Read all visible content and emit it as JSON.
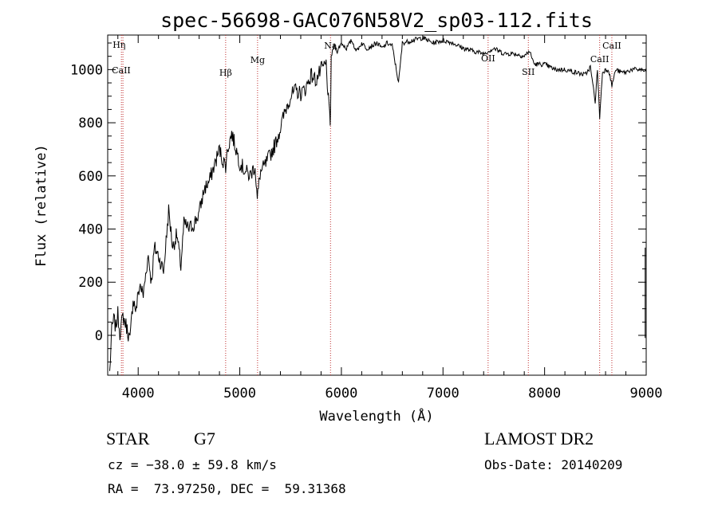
{
  "chart_data": {
    "type": "line",
    "title": "spec-56698-GAC076N58V2_sp03-112.fits",
    "xlabel": "Wavelength (Å)",
    "ylabel": "Flux (relative)",
    "xlim": [
      3700,
      9000
    ],
    "ylim": [
      -150,
      1130
    ],
    "xticks": [
      4000,
      5000,
      6000,
      7000,
      8000,
      9000
    ],
    "yticks": [
      0,
      200,
      400,
      600,
      800,
      1000
    ],
    "grid": false,
    "series": [
      {
        "x": [
          3720,
          3740,
          3760,
          3780,
          3800,
          3820,
          3850,
          3880,
          3920,
          3950,
          3980,
          4000,
          4020,
          4050,
          4080,
          4100,
          4130,
          4160,
          4200,
          4250,
          4300,
          4340,
          4380,
          4420,
          4450,
          4500,
          4550,
          4600,
          4650,
          4700,
          4750,
          4800,
          4830,
          4861,
          4880,
          4920,
          4950,
          5000,
          5050,
          5100,
          5150,
          5172,
          5200,
          5250,
          5300,
          5350,
          5400,
          5450,
          5500,
          5550,
          5600,
          5650,
          5700,
          5750,
          5800,
          5850,
          5890,
          5900,
          5930,
          5960,
          6000,
          6050,
          6100,
          6150,
          6200,
          6250,
          6300,
          6350,
          6400,
          6450,
          6500,
          6563,
          6600,
          6700,
          6800,
          6900,
          7000,
          7100,
          7200,
          7300,
          7400,
          7500,
          7600,
          7700,
          7800,
          7850,
          7900,
          8000,
          8100,
          8200,
          8300,
          8400,
          8450,
          8498,
          8520,
          8542,
          8570,
          8600,
          8630,
          8662,
          8700,
          8750,
          8800,
          8850,
          8900,
          8950,
          9000
        ],
        "y": [
          -140,
          20,
          60,
          30,
          80,
          10,
          70,
          40,
          -20,
          140,
          90,
          160,
          190,
          150,
          250,
          300,
          200,
          330,
          300,
          240,
          470,
          330,
          380,
          260,
          420,
          400,
          420,
          460,
          550,
          580,
          640,
          700,
          660,
          640,
          700,
          760,
          720,
          650,
          620,
          600,
          640,
          510,
          610,
          640,
          680,
          720,
          780,
          850,
          900,
          920,
          910,
          930,
          980,
          960,
          1000,
          1020,
          780,
          1050,
          1090,
          1070,
          1100,
          1080,
          1110,
          1070,
          1100,
          1080,
          1090,
          1100,
          1080,
          1100,
          1090,
          950,
          1100,
          1110,
          1120,
          1100,
          1110,
          1100,
          1080,
          1070,
          1060,
          1080,
          1060,
          1060,
          1050,
          1070,
          1020,
          1020,
          1000,
          1000,
          990,
          980,
          1010,
          880,
          1000,
          820,
          990,
          1000,
          1000,
          940,
          1000,
          990,
          990,
          1000,
          1000,
          1000,
          990
        ]
      }
    ],
    "spectral_lines": [
      {
        "label": "Hη",
        "x": 3835
      },
      {
        "label": "CaII",
        "x": 3850
      },
      {
        "label": "Hβ",
        "x": 4861
      },
      {
        "label": "Mg",
        "x": 5175
      },
      {
        "label": "Na",
        "x": 5893
      },
      {
        "label": "OII",
        "x": 7444
      },
      {
        "label": "SII",
        "x": 7840
      },
      {
        "label": "CaII",
        "x": 8542
      },
      {
        "label": "CaII",
        "x": 8662
      }
    ]
  },
  "info": {
    "object": "STAR",
    "subclass": "G7",
    "survey": "LAMOST DR2",
    "cz": "cz = −38.0 ± 59.8 km/s",
    "obs_date": "Obs-Date: 20140209",
    "radec": "RA =  73.97250, DEC =  59.31368"
  }
}
